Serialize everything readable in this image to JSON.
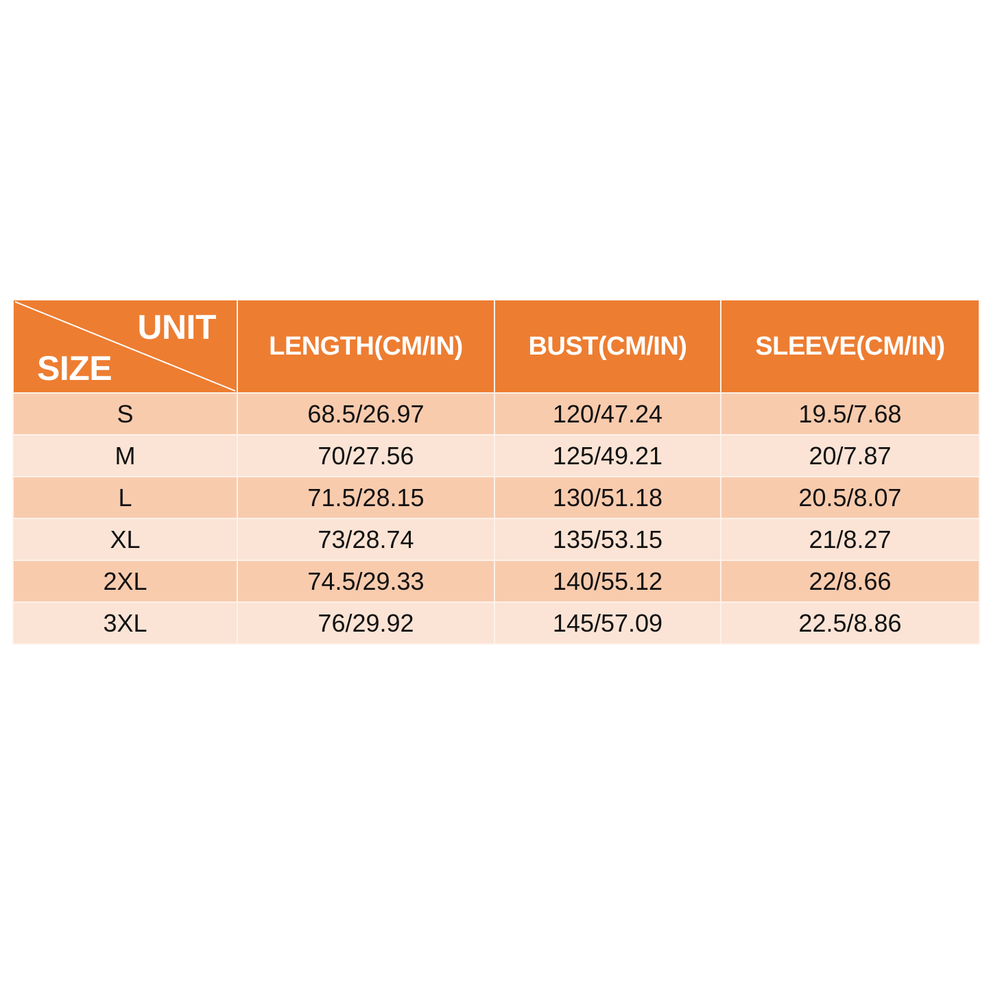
{
  "table": {
    "corner": {
      "unit_label": "UNIT",
      "size_label": "SIZE"
    },
    "headers": [
      "LENGTH(CM/IN)",
      "BUST(CM/IN)",
      "SLEEVE(CM/IN)"
    ],
    "rows": [
      {
        "size": "S",
        "values": [
          "68.5/26.97",
          "120/47.24",
          "19.5/7.68"
        ]
      },
      {
        "size": "M",
        "values": [
          "70/27.56",
          "125/49.21",
          "20/7.87"
        ]
      },
      {
        "size": "L",
        "values": [
          "71.5/28.15",
          "130/51.18",
          "20.5/8.07"
        ]
      },
      {
        "size": "XL",
        "values": [
          "73/28.74",
          "135/53.15",
          "21/8.27"
        ]
      },
      {
        "size": "2XL",
        "values": [
          "74.5/29.33",
          "140/55.12",
          "22/8.66"
        ]
      },
      {
        "size": "3XL",
        "values": [
          "76/29.92",
          "145/57.09",
          "22.5/8.86"
        ]
      }
    ]
  },
  "colors": {
    "header": "#ED7D31",
    "row_dark": "#F8CBAD",
    "row_light": "#FBE4D5"
  }
}
